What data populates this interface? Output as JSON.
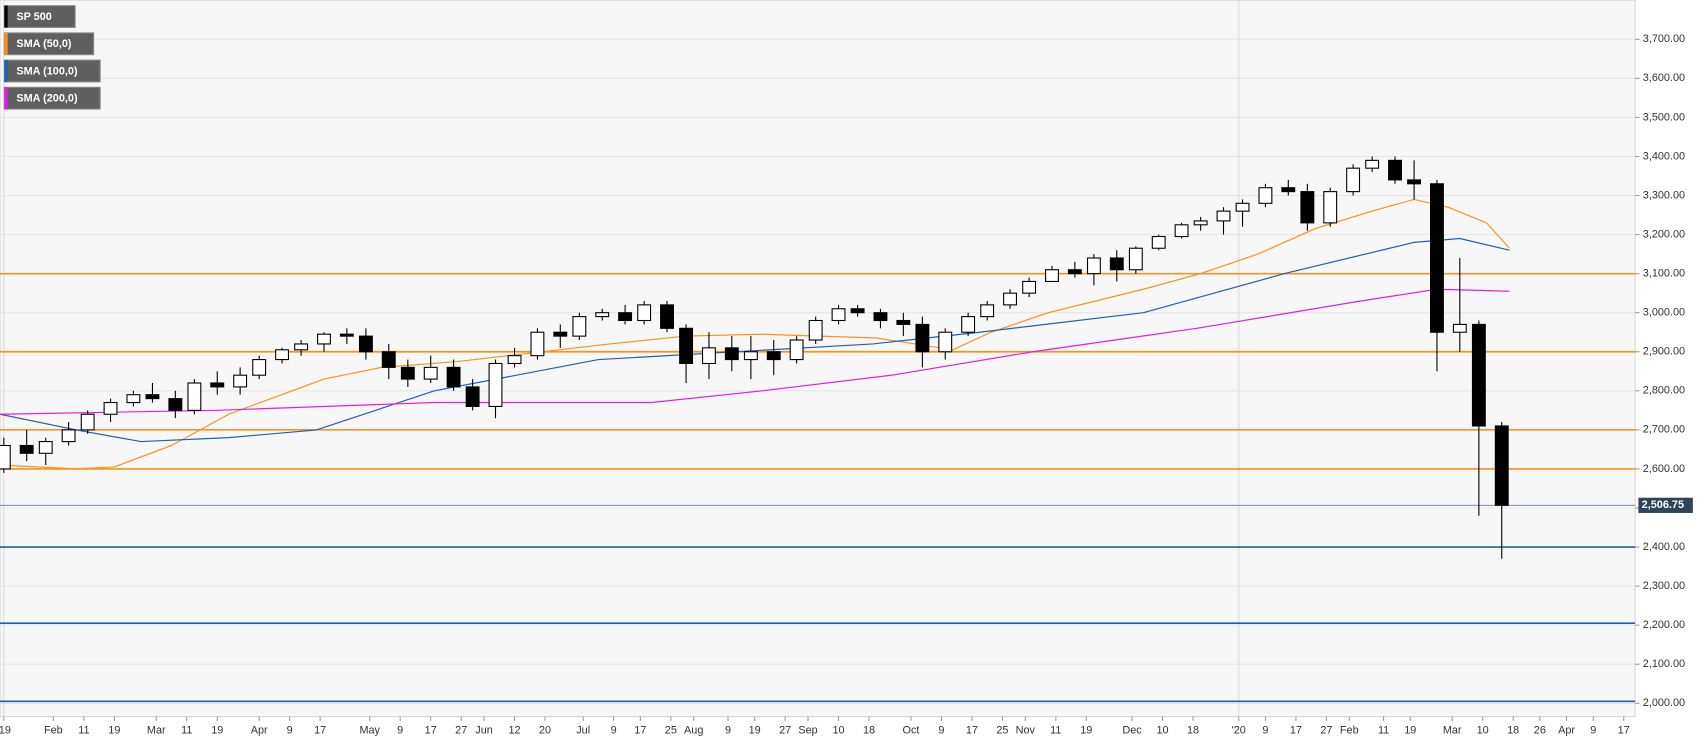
{
  "chart_data": {
    "type": "candlestick",
    "name": "SP 500",
    "color": "#000000",
    "x": [
      1,
      7,
      12,
      18,
      23,
      29,
      35,
      40,
      46,
      51,
      57,
      63,
      68,
      74,
      79,
      85,
      91,
      96,
      102,
      107,
      113,
      119,
      124,
      130,
      135,
      141,
      147,
      152,
      158,
      164,
      169,
      175,
      180,
      186,
      192,
      197,
      203,
      209,
      214,
      220,
      225,
      231,
      237,
      242,
      248,
      254,
      259,
      265,
      270,
      276,
      282,
      287,
      293,
      298,
      304,
      310,
      315,
      321,
      326,
      332,
      338,
      343,
      349,
      355,
      360,
      366,
      371,
      377,
      383,
      388,
      394
    ],
    "open": [
      2600,
      2660,
      2640,
      2670,
      2700,
      2740,
      2770,
      2790,
      2780,
      2750,
      2820,
      2810,
      2840,
      2880,
      2905,
      2920,
      2945,
      2940,
      2900,
      2860,
      2830,
      2860,
      2810,
      2760,
      2870,
      2890,
      2950,
      2940,
      2990,
      3000,
      2980,
      3020,
      2960,
      2870,
      2910,
      2880,
      2900,
      2880,
      2930,
      2980,
      3010,
      3000,
      2980,
      2970,
      2900,
      2950,
      2990,
      3020,
      3050,
      3080,
      3110,
      3100,
      3140,
      3110,
      3165,
      3195,
      3225,
      3235,
      3260,
      3280,
      3320,
      3310,
      3230,
      3310,
      3370,
      3390,
      3340,
      3330,
      2950,
      2970,
      2710
    ],
    "high": [
      2680,
      2700,
      2680,
      2720,
      2750,
      2780,
      2800,
      2820,
      2800,
      2830,
      2850,
      2860,
      2890,
      2910,
      2930,
      2950,
      2960,
      2960,
      2920,
      2880,
      2890,
      2880,
      2830,
      2880,
      2910,
      2960,
      2970,
      3000,
      3010,
      3020,
      3030,
      3030,
      2970,
      2950,
      2940,
      2940,
      2930,
      2940,
      2990,
      3020,
      3020,
      3010,
      3000,
      2990,
      2960,
      3000,
      3030,
      3060,
      3090,
      3120,
      3130,
      3150,
      3160,
      3170,
      3200,
      3230,
      3245,
      3270,
      3290,
      3330,
      3340,
      3330,
      3320,
      3380,
      3400,
      3400,
      3390,
      3340,
      3140,
      2980,
      2720
    ],
    "low": [
      2590,
      2620,
      2610,
      2660,
      2690,
      2720,
      2760,
      2770,
      2730,
      2740,
      2790,
      2790,
      2830,
      2870,
      2890,
      2900,
      2920,
      2880,
      2830,
      2810,
      2820,
      2800,
      2750,
      2730,
      2860,
      2880,
      2910,
      2930,
      2980,
      2970,
      2970,
      2950,
      2820,
      2830,
      2850,
      2830,
      2840,
      2870,
      2920,
      2970,
      2990,
      2960,
      2940,
      2860,
      2880,
      2940,
      2980,
      3010,
      3040,
      3080,
      3090,
      3070,
      3080,
      3100,
      3160,
      3190,
      3210,
      3200,
      3220,
      3270,
      3300,
      3210,
      3220,
      3300,
      3360,
      3330,
      3290,
      2850,
      2900,
      2480,
      2370
    ],
    "close": [
      2660,
      2640,
      2670,
      2700,
      2740,
      2770,
      2790,
      2780,
      2750,
      2820,
      2810,
      2840,
      2880,
      2905,
      2920,
      2945,
      2940,
      2900,
      2860,
      2830,
      2860,
      2810,
      2760,
      2870,
      2890,
      2950,
      2940,
      2990,
      3000,
      2980,
      3020,
      2960,
      2870,
      2910,
      2880,
      2900,
      2880,
      2930,
      2980,
      3010,
      3000,
      2980,
      2970,
      2900,
      2950,
      2990,
      3020,
      3050,
      3080,
      3110,
      3100,
      3140,
      3110,
      3165,
      3195,
      3225,
      3235,
      3260,
      3280,
      3320,
      3310,
      3230,
      3310,
      3370,
      3390,
      3340,
      3330,
      2950,
      2970,
      2710,
      2506.75
    ],
    "series": [
      {
        "name": "SMA (50,0)",
        "color": "#f7931e",
        "x": [
          0,
          20,
          30,
          45,
          60,
          85,
          100,
          120,
          160,
          180,
          200,
          230,
          250,
          260,
          275,
          300,
          315,
          330,
          345,
          360,
          371,
          380,
          390,
          396
        ],
        "values": [
          2610,
          2600,
          2605,
          2660,
          2740,
          2830,
          2860,
          2875,
          2920,
          2940,
          2945,
          2935,
          2905,
          2950,
          3000,
          3060,
          3100,
          3150,
          3215,
          3260,
          3290,
          3270,
          3230,
          3165
        ]
      },
      {
        "name": "SMA (100,0)",
        "color": "#1f5fb4",
        "x": [
          0,
          20,
          37,
          60,
          83,
          114,
          157,
          229,
          257,
          300,
          337,
          371,
          383,
          396
        ],
        "values": [
          2740,
          2700,
          2670,
          2680,
          2700,
          2800,
          2880,
          2920,
          2950,
          3000,
          3100,
          3180,
          3190,
          3160
        ]
      },
      {
        "name": "SMA (200,0)",
        "color": "#e020e0",
        "x": [
          0,
          57,
          114,
          171,
          200,
          234,
          271,
          314,
          357,
          377,
          396
        ],
        "values": [
          2740,
          2750,
          2770,
          2770,
          2800,
          2840,
          2900,
          2960,
          3030,
          3060,
          3055
        ]
      }
    ],
    "levels": [
      {
        "value": 3100,
        "color": "#f7931e"
      },
      {
        "value": 2900,
        "color": "#f7931e"
      },
      {
        "value": 2700,
        "color": "#f7931e"
      },
      {
        "value": 2600,
        "color": "#f7931e"
      },
      {
        "value": 2400,
        "color": "#1f5fb4"
      },
      {
        "value": 2205,
        "color": "#1f5fb4"
      },
      {
        "value": 2005,
        "color": "#1f5fb4"
      }
    ],
    "last_price": {
      "value": 2506.75,
      "label": "2,506.75"
    },
    "ylim": [
      1966,
      3800
    ],
    "yticks": [
      {
        "value": 2000,
        "label": "2,000.00"
      },
      {
        "value": 2100,
        "label": "2,100.00"
      },
      {
        "value": 2200,
        "label": "2,200.00"
      },
      {
        "value": 2300,
        "label": "2,300.00"
      },
      {
        "value": 2400,
        "label": "2,400.00"
      },
      {
        "value": 2500,
        "label": "2,500.00"
      },
      {
        "value": 2600,
        "label": "2,600.00"
      },
      {
        "value": 2700,
        "label": "2,700.00"
      },
      {
        "value": 2800,
        "label": "2,800.00"
      },
      {
        "value": 2900,
        "label": "2,900.00"
      },
      {
        "value": 3000,
        "label": "3,000.00"
      },
      {
        "value": 3100,
        "label": "3,100.00"
      },
      {
        "value": 3200,
        "label": "3,200.00"
      },
      {
        "value": 3300,
        "label": "3,300.00"
      },
      {
        "value": 3400,
        "label": "3,400.00"
      },
      {
        "value": 3500,
        "label": "3,500.00"
      },
      {
        "value": 3600,
        "label": "3,600.00"
      },
      {
        "value": 3700,
        "label": "3,700.00"
      }
    ],
    "xlim": [
      0,
      429
    ],
    "xticks": [
      {
        "value": 1,
        "label": "'19"
      },
      {
        "value": 14,
        "label": "Feb"
      },
      {
        "value": 22,
        "label": "11"
      },
      {
        "value": 30,
        "label": "19"
      },
      {
        "value": 41,
        "label": "Mar"
      },
      {
        "value": 49,
        "label": "11"
      },
      {
        "value": 57,
        "label": "19"
      },
      {
        "value": 68,
        "label": "Apr"
      },
      {
        "value": 76,
        "label": "9"
      },
      {
        "value": 84,
        "label": "17"
      },
      {
        "value": 97,
        "label": "May"
      },
      {
        "value": 105,
        "label": "9"
      },
      {
        "value": 113,
        "label": "17"
      },
      {
        "value": 121,
        "label": "27"
      },
      {
        "value": 127,
        "label": "Jun"
      },
      {
        "value": 135,
        "label": "12"
      },
      {
        "value": 143,
        "label": "20"
      },
      {
        "value": 153,
        "label": "Jul"
      },
      {
        "value": 161,
        "label": "9"
      },
      {
        "value": 168,
        "label": "17"
      },
      {
        "value": 176,
        "label": "25"
      },
      {
        "value": 182,
        "label": "Aug"
      },
      {
        "value": 191,
        "label": "9"
      },
      {
        "value": 198,
        "label": "19"
      },
      {
        "value": 206,
        "label": "27"
      },
      {
        "value": 212,
        "label": "Sep"
      },
      {
        "value": 220,
        "label": "10"
      },
      {
        "value": 228,
        "label": "18"
      },
      {
        "value": 239,
        "label": "Oct"
      },
      {
        "value": 247,
        "label": "9"
      },
      {
        "value": 255,
        "label": "17"
      },
      {
        "value": 263,
        "label": "25"
      },
      {
        "value": 269,
        "label": "Nov"
      },
      {
        "value": 277,
        "label": "11"
      },
      {
        "value": 285,
        "label": "19"
      },
      {
        "value": 297,
        "label": "Dec"
      },
      {
        "value": 305,
        "label": "10"
      },
      {
        "value": 313,
        "label": "18"
      },
      {
        "value": 325,
        "label": "'20"
      },
      {
        "value": 332,
        "label": "9"
      },
      {
        "value": 340,
        "label": "17"
      },
      {
        "value": 348,
        "label": "27"
      },
      {
        "value": 354,
        "label": "Feb"
      },
      {
        "value": 363,
        "label": "11"
      },
      {
        "value": 370,
        "label": "19"
      },
      {
        "value": 381,
        "label": "Mar"
      },
      {
        "value": 389,
        "label": "10"
      },
      {
        "value": 397,
        "label": "18"
      },
      {
        "value": 404,
        "label": "26"
      },
      {
        "value": 411,
        "label": "Apr"
      },
      {
        "value": 418,
        "label": "9"
      },
      {
        "value": 426,
        "label": "17"
      }
    ],
    "grid": true
  }
}
